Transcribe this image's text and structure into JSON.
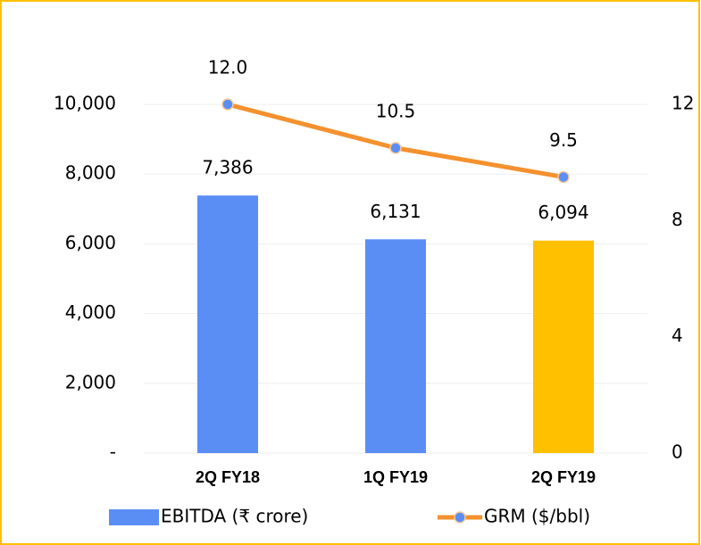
{
  "chart_data": {
    "type": "bar_line",
    "categories": [
      "2Q FY18",
      "1Q FY19",
      "2Q FY19"
    ],
    "series": [
      {
        "name": "EBITDA (₹ crore)",
        "type": "bar",
        "color": "#5b8ef5",
        "colors": [
          "#5b8ef5",
          "#5b8ef5",
          "#ffc000"
        ],
        "values": [
          7386,
          6131,
          6094
        ],
        "value_labels": [
          "7,386",
          "6,131",
          "6,094"
        ]
      },
      {
        "name": "GRM ($/bbl)",
        "type": "line",
        "axis": "y2",
        "color": "#f4912e",
        "marker_color": "#5b8ef5",
        "values": [
          12.0,
          10.5,
          9.5
        ],
        "value_labels": [
          "12.0",
          "10.5",
          "9.5"
        ]
      }
    ],
    "ylim": [
      0,
      10000
    ],
    "yticks": [
      {
        "value": 0,
        "label": "-"
      },
      {
        "value": 2000,
        "label": "2,000"
      },
      {
        "value": 4000,
        "label": "4,000"
      },
      {
        "value": 6000,
        "label": "6,000"
      },
      {
        "value": 8000,
        "label": "8,000"
      },
      {
        "value": 10000,
        "label": "10,000"
      }
    ],
    "y2lim": [
      0,
      12
    ],
    "y2ticks": [
      0,
      4,
      8,
      12
    ],
    "grid": true,
    "legend": "bottom"
  }
}
